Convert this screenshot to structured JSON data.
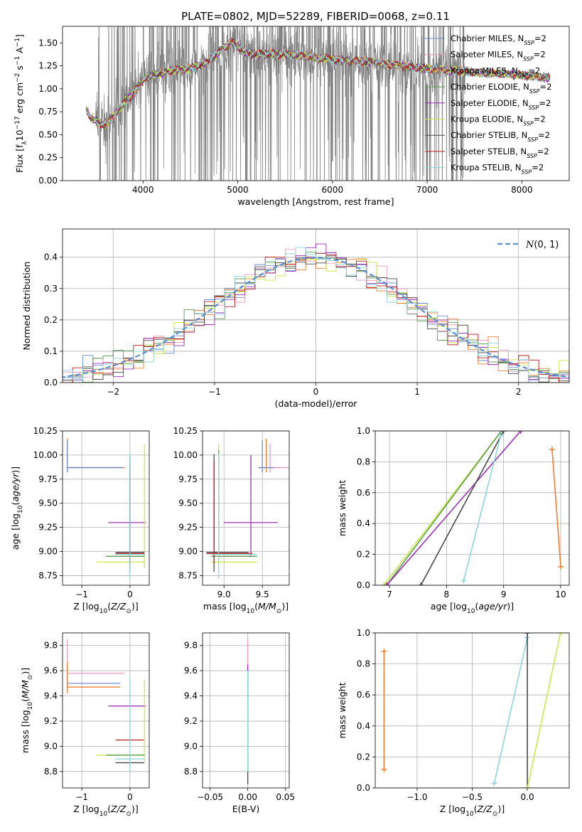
{
  "figure": {
    "title": "PLATE=0802, MJD=52289, FIBERID=0068, z=0.11"
  },
  "series": [
    {
      "name": "Chabrier MILES",
      "color": "#6A8FD0"
    },
    {
      "name": "Salpeter MILES",
      "color": "#E89BC3"
    },
    {
      "name": "Kroupa MILES",
      "color": "#EE8033"
    },
    {
      "name": "Chabrier ELODIE",
      "color": "#5C9C4C"
    },
    {
      "name": "Salpeter ELODIE",
      "color": "#9A2FB7"
    },
    {
      "name": "Kroupa ELODIE",
      "color": "#CEE64A"
    },
    {
      "name": "Chabrier STELIB",
      "color": "#4A4A4A"
    },
    {
      "name": "Salpeter STELIB",
      "color": "#B81E1E"
    },
    {
      "name": "Kroupa STELIB",
      "color": "#8FD3DE"
    }
  ],
  "legend_suffix": "N_SSP=2",
  "chart_data": [
    {
      "id": "spectrum",
      "type": "line",
      "xlabel": "wavelength [Angstrom, rest frame]",
      "ylabel": "Flux [f_λ 10^-17 erg cm^-2 s^-1 A^-1]",
      "xlim": [
        3150,
        8500
      ],
      "ylim": [
        0,
        1.68
      ],
      "xticks": [
        4000,
        5000,
        6000,
        7000,
        8000
      ],
      "yticks": [
        0.0,
        0.25,
        0.5,
        0.75,
        1.0,
        1.25,
        1.5
      ],
      "data_color": "#808080",
      "data_x_range": [
        3400,
        8300
      ],
      "model_profile": [
        [
          3400,
          0.78
        ],
        [
          3450,
          0.68
        ],
        [
          3600,
          0.6
        ],
        [
          3700,
          0.72
        ],
        [
          3800,
          0.85
        ],
        [
          3900,
          0.95
        ],
        [
          4000,
          1.1
        ],
        [
          4100,
          1.15
        ],
        [
          4300,
          1.2
        ],
        [
          4500,
          1.22
        ],
        [
          4700,
          1.3
        ],
        [
          4850,
          1.45
        ],
        [
          4950,
          1.5
        ],
        [
          5100,
          1.38
        ],
        [
          5500,
          1.38
        ],
        [
          6000,
          1.32
        ],
        [
          6500,
          1.28
        ],
        [
          7000,
          1.22
        ],
        [
          7500,
          1.18
        ],
        [
          8000,
          1.15
        ],
        [
          8300,
          1.12
        ]
      ],
      "legend_position": "upper-right"
    },
    {
      "id": "residuals",
      "type": "step",
      "xlabel": "(data-model)/error",
      "ylabel": "Normed distribution",
      "xlim": [
        -2.5,
        2.5
      ],
      "ylim": [
        0,
        0.49
      ],
      "xticks": [
        -2,
        -1,
        0,
        1,
        2
      ],
      "yticks": [
        0.0,
        0.1,
        0.2,
        0.3,
        0.4
      ],
      "bin_width": 0.1,
      "gaussian_label": "N(0,1)",
      "gaussian_color": "#5B8FD4",
      "legend_position": "upper-right"
    },
    {
      "id": "Z-age",
      "type": "errorbar",
      "xlabel": "Z [log10(Z/Z⊙)]",
      "ylabel": "age [log10(age/yr)]",
      "xlim": [
        -1.4,
        0.4
      ],
      "ylim": [
        8.65,
        10.25
      ],
      "xticks": [
        -1,
        0
      ],
      "yticks": [
        8.75,
        9.0,
        9.25,
        9.5,
        9.75,
        10.0,
        10.25
      ],
      "points": [
        {
          "series": 2,
          "x": -1.3,
          "y": 9.87,
          "xerr": [
            0.0,
            1.2
          ],
          "yerr": [
            0.05,
            0.3
          ]
        },
        {
          "series": 1,
          "x": -1.3,
          "y": 9.87,
          "xerr": [
            0.0,
            1.1
          ],
          "yerr": [
            0.05,
            0.25
          ]
        },
        {
          "series": 0,
          "x": -1.3,
          "y": 9.87,
          "xerr": [
            0.0,
            1.15
          ],
          "yerr": [
            0.05,
            0.28
          ]
        },
        {
          "series": 4,
          "x": 0.0,
          "y": 9.3,
          "xerr": [
            0.45,
            0.33
          ],
          "yerr": [
            0.0,
            0.0
          ]
        },
        {
          "series": 5,
          "x": 0.3,
          "y": 8.89,
          "xerr": [
            1.0,
            0.0
          ],
          "yerr": [
            0.06,
            1.22
          ]
        },
        {
          "series": 3,
          "x": 0.0,
          "y": 8.95,
          "xerr": [
            0.5,
            0.3
          ],
          "yerr": [
            0.05,
            1.0
          ]
        },
        {
          "series": 6,
          "x": 0.0,
          "y": 8.99,
          "xerr": [
            0.3,
            0.3
          ],
          "yerr": [
            0.2,
            1.0
          ]
        },
        {
          "series": 7,
          "x": 0.0,
          "y": 8.98,
          "xerr": [
            0.3,
            0.3
          ],
          "yerr": [
            0.1,
            0.9
          ]
        },
        {
          "series": 8,
          "x": 0.0,
          "y": 8.97,
          "xerr": [
            0.3,
            0.3
          ],
          "yerr": [
            0.25,
            1.05
          ]
        }
      ]
    },
    {
      "id": "mass-age",
      "type": "errorbar",
      "xlabel": "mass [log10(M/M⊙)]",
      "ylabel": "",
      "xlim": [
        8.72,
        9.85
      ],
      "ylim": [
        8.65,
        10.25
      ],
      "xticks": [
        9.0,
        9.5
      ],
      "yticks": [
        8.75,
        9.0,
        9.25,
        9.5,
        9.75,
        10.0,
        10.25
      ],
      "points": [
        {
          "series": 2,
          "x": 9.55,
          "y": 9.87,
          "xerr": [
            0.1,
            0.2
          ],
          "yerr": [
            0.05,
            0.3
          ]
        },
        {
          "series": 1,
          "x": 9.6,
          "y": 9.87,
          "xerr": [
            0.1,
            0.3
          ],
          "yerr": [
            0.05,
            0.25
          ]
        },
        {
          "series": 0,
          "x": 9.5,
          "y": 9.87,
          "xerr": [
            0.05,
            0.15
          ],
          "yerr": [
            0.05,
            0.28
          ]
        },
        {
          "series": 4,
          "x": 9.35,
          "y": 9.3,
          "xerr": [
            0.35,
            0.35
          ],
          "yerr": [
            0.35,
            0.7
          ]
        },
        {
          "series": 5,
          "x": 8.93,
          "y": 8.89,
          "xerr": [
            0.1,
            0.5
          ],
          "yerr": [
            0.06,
            1.22
          ]
        },
        {
          "series": 3,
          "x": 8.93,
          "y": 8.95,
          "xerr": [
            0.1,
            0.5
          ],
          "yerr": [
            0.05,
            1.1
          ]
        },
        {
          "series": 6,
          "x": 8.87,
          "y": 8.99,
          "xerr": [
            0.1,
            0.45
          ],
          "yerr": [
            0.2,
            1.02
          ]
        },
        {
          "series": 7,
          "x": 8.87,
          "y": 8.98,
          "xerr": [
            0.1,
            0.5
          ],
          "yerr": [
            0.1,
            0.95
          ]
        },
        {
          "series": 8,
          "x": 8.93,
          "y": 8.97,
          "xerr": [
            0.1,
            0.5
          ],
          "yerr": [
            0.25,
            1.05
          ]
        }
      ]
    },
    {
      "id": "age-weight",
      "type": "line",
      "xlabel": "age [log10(age/yr)]",
      "ylabel": "mass weight",
      "xlim": [
        6.75,
        10.15
      ],
      "ylim": [
        0,
        1.0
      ],
      "xticks": [
        7,
        8,
        9,
        10
      ],
      "yticks": [
        0.0,
        0.2,
        0.4,
        0.6,
        0.8,
        1.0
      ],
      "lines": [
        {
          "series": 5,
          "x": [
            6.9,
            9.0
          ],
          "y": [
            0.0,
            1.02
          ]
        },
        {
          "series": 3,
          "x": [
            6.95,
            9.0
          ],
          "y": [
            0.0,
            1.02
          ]
        },
        {
          "series": 4,
          "x": [
            6.95,
            9.3
          ],
          "y": [
            0.0,
            1.0
          ]
        },
        {
          "series": 6,
          "x": [
            7.55,
            9.0
          ],
          "y": [
            0.0,
            1.0
          ]
        },
        {
          "series": 8,
          "x": [
            8.3,
            8.95
          ],
          "y": [
            0.03,
            0.97
          ]
        },
        {
          "series": 2,
          "x": [
            9.85,
            10.0
          ],
          "y": [
            0.88,
            0.12
          ]
        }
      ]
    },
    {
      "id": "Z-mass",
      "type": "errorbar",
      "xlabel": "Z [log10(Z/Z⊙)]",
      "ylabel": "mass [log10(M/M⊙)]",
      "xlim": [
        -1.4,
        0.4
      ],
      "ylim": [
        8.67,
        9.9
      ],
      "xticks": [
        -1,
        0
      ],
      "yticks": [
        8.8,
        9.0,
        9.2,
        9.4,
        9.6,
        9.8
      ],
      "points": [
        {
          "series": 1,
          "x": -1.3,
          "y": 9.58,
          "xerr": [
            0.0,
            1.18
          ],
          "yerr": [
            0.1,
            0.27
          ]
        },
        {
          "series": 0,
          "x": -1.3,
          "y": 9.5,
          "xerr": [
            0.0,
            1.1
          ],
          "yerr": [
            0.05,
            0.15
          ]
        },
        {
          "series": 2,
          "x": -1.3,
          "y": 9.47,
          "xerr": [
            0.0,
            1.1
          ],
          "yerr": [
            0.05,
            0.2
          ]
        },
        {
          "series": 4,
          "x": 0.0,
          "y": 9.32,
          "xerr": [
            0.45,
            0.33
          ],
          "yerr": [
            0.0,
            0.0
          ]
        },
        {
          "series": 7,
          "x": 0.0,
          "y": 9.05,
          "xerr": [
            0.3,
            0.3
          ],
          "yerr": [
            0.0,
            0.0
          ]
        },
        {
          "series": 5,
          "x": 0.3,
          "y": 8.93,
          "xerr": [
            1.0,
            0.0
          ],
          "yerr": [
            0.05,
            0.6
          ]
        },
        {
          "series": 3,
          "x": 0.0,
          "y": 8.93,
          "xerr": [
            0.5,
            0.3
          ],
          "yerr": [
            0.0,
            0.0
          ]
        },
        {
          "series": 6,
          "x": 0.0,
          "y": 8.87,
          "xerr": [
            0.3,
            0.3
          ],
          "yerr": [
            0.0,
            0.0
          ]
        },
        {
          "series": 8,
          "x": 0.0,
          "y": 8.9,
          "xerr": [
            0.3,
            0.3
          ],
          "yerr": [
            0.1,
            0.65
          ]
        }
      ]
    },
    {
      "id": "ebv",
      "type": "errorbar",
      "xlabel": "E(B-V)",
      "ylabel": "",
      "xlim": [
        -0.06,
        0.055
      ],
      "ylim": [
        8.67,
        9.9
      ],
      "xticks": [
        -0.05,
        0.0,
        0.05
      ],
      "yticks": [
        8.8,
        9.0,
        9.2,
        9.4,
        9.6,
        9.8
      ],
      "points": [
        {
          "series": 1,
          "x": 0.0,
          "y": 9.58,
          "xerr": [
            0,
            0
          ],
          "yerr": [
            0.15,
            0.27
          ]
        },
        {
          "series": 4,
          "x": 0.0,
          "y": 9.5,
          "xerr": [
            0,
            0
          ],
          "yerr": [
            0.2,
            0.15
          ]
        },
        {
          "series": 7,
          "x": 0.0,
          "y": 9.4,
          "xerr": [
            0,
            0
          ],
          "yerr": [
            0.1,
            0.1
          ]
        },
        {
          "series": 6,
          "x": 0.0,
          "y": 9.0,
          "xerr": [
            0,
            0
          ],
          "yerr": [
            0.3,
            0.3
          ]
        },
        {
          "series": 8,
          "x": 0.0,
          "y": 9.2,
          "xerr": [
            0,
            0
          ],
          "yerr": [
            0.4,
            0.4
          ]
        }
      ]
    },
    {
      "id": "Z-weight",
      "type": "line",
      "xlabel": "Z [log10(Z/Z⊙)]",
      "ylabel": "mass weight",
      "xlim": [
        -1.38,
        0.38
      ],
      "ylim": [
        0,
        1.0
      ],
      "xticks": [
        -1.0,
        -0.5,
        0.0
      ],
      "yticks": [
        0.0,
        0.2,
        0.4,
        0.6,
        0.8,
        1.0
      ],
      "lines": [
        {
          "series": 2,
          "x": [
            -1.3,
            -1.3
          ],
          "y": [
            0.88,
            0.12
          ]
        },
        {
          "series": 8,
          "x": [
            -0.3,
            0.0
          ],
          "y": [
            0.03,
            0.97
          ]
        },
        {
          "series": 6,
          "x": [
            0.0,
            0.0
          ],
          "y": [
            0.0,
            1.0
          ]
        },
        {
          "series": 5,
          "x": [
            0.0,
            0.3
          ],
          "y": [
            0.0,
            1.0
          ]
        }
      ]
    }
  ]
}
